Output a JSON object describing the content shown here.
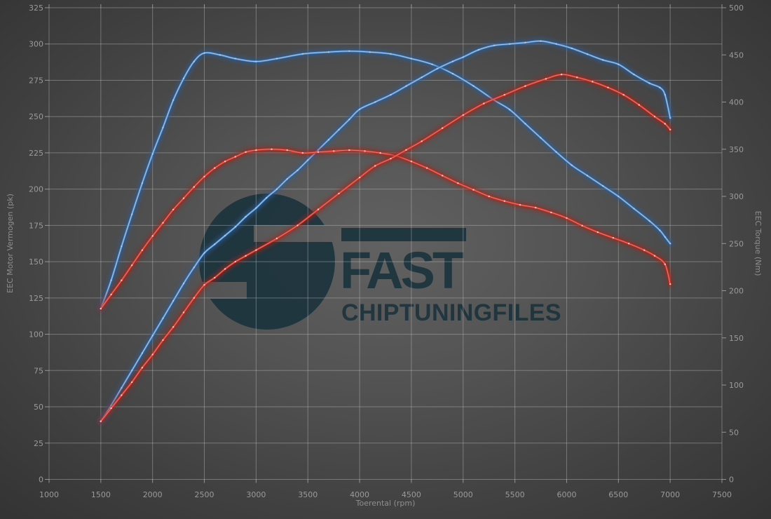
{
  "logo": {
    "line1": "FAST",
    "line2": "CHIPTUNINGFILES",
    "color": "#1b333d"
  },
  "chart_data": {
    "type": "line",
    "title": "",
    "xlabel": "Toerental (rpm)",
    "ylabel_left": "EEC Motor Vermogen (pk)",
    "ylabel_right": "EEC Torque (Nm)",
    "x_range": [
      1000,
      7500
    ],
    "x_tick_step": 500,
    "left_range": [
      0,
      325
    ],
    "left_tick_step": 25,
    "right_range": [
      0,
      500
    ],
    "right_tick_step": 50,
    "grid": true,
    "legend": "none",
    "series": [
      {
        "name": "torque-blue",
        "axis": "right",
        "unit": "Nm",
        "color": {
          "glow": "#2b5f9b",
          "main": "#4e8ed2",
          "core": "#a6c9ec",
          "marker": "#d6e8fb"
        },
        "marker_opacity": 0.45,
        "points": [
          [
            1500,
            181
          ],
          [
            1600,
            211
          ],
          [
            1700,
            247
          ],
          [
            1800,
            281
          ],
          [
            1900,
            314
          ],
          [
            2000,
            345
          ],
          [
            2100,
            373
          ],
          [
            2200,
            402
          ],
          [
            2300,
            425
          ],
          [
            2400,
            443
          ],
          [
            2500,
            452
          ],
          [
            2650,
            450
          ],
          [
            2800,
            446
          ],
          [
            3000,
            443
          ],
          [
            3200,
            446
          ],
          [
            3450,
            451
          ],
          [
            3700,
            453
          ],
          [
            3900,
            454
          ],
          [
            4100,
            453
          ],
          [
            4300,
            451
          ],
          [
            4500,
            446
          ],
          [
            4700,
            440
          ],
          [
            4900,
            430
          ],
          [
            5100,
            417
          ],
          [
            5300,
            402
          ],
          [
            5450,
            392
          ],
          [
            5600,
            377
          ],
          [
            5750,
            362
          ],
          [
            5900,
            347
          ],
          [
            6050,
            333
          ],
          [
            6200,
            322
          ],
          [
            6350,
            311
          ],
          [
            6500,
            300
          ],
          [
            6650,
            287
          ],
          [
            6800,
            274
          ],
          [
            6900,
            264
          ],
          [
            6950,
            257
          ],
          [
            7000,
            250
          ]
        ]
      },
      {
        "name": "power-blue",
        "axis": "left",
        "unit": "pk",
        "color": {
          "glow": "#2b5f9b",
          "main": "#4e8ed2",
          "core": "#a6c9ec",
          "marker": "#d6e8fb"
        },
        "marker_opacity": 0.45,
        "points": [
          [
            1500,
            40
          ],
          [
            1600,
            51
          ],
          [
            1700,
            63
          ],
          [
            1800,
            75
          ],
          [
            1900,
            87
          ],
          [
            2000,
            99
          ],
          [
            2100,
            111
          ],
          [
            2200,
            123
          ],
          [
            2300,
            135
          ],
          [
            2400,
            146
          ],
          [
            2500,
            156
          ],
          [
            2600,
            162
          ],
          [
            2700,
            168
          ],
          [
            2800,
            174
          ],
          [
            2900,
            181
          ],
          [
            3000,
            187
          ],
          [
            3100,
            194
          ],
          [
            3200,
            200
          ],
          [
            3300,
            207
          ],
          [
            3400,
            213
          ],
          [
            3500,
            220
          ],
          [
            3600,
            227
          ],
          [
            3700,
            234
          ],
          [
            3800,
            241
          ],
          [
            3900,
            248
          ],
          [
            4000,
            255
          ],
          [
            4150,
            260
          ],
          [
            4300,
            265
          ],
          [
            4450,
            271
          ],
          [
            4600,
            277
          ],
          [
            4750,
            283
          ],
          [
            4900,
            288
          ],
          [
            5000,
            291
          ],
          [
            5150,
            296
          ],
          [
            5300,
            299
          ],
          [
            5450,
            300
          ],
          [
            5600,
            301
          ],
          [
            5750,
            302
          ],
          [
            5900,
            300
          ],
          [
            6050,
            297
          ],
          [
            6200,
            293
          ],
          [
            6350,
            289
          ],
          [
            6500,
            286
          ],
          [
            6650,
            279
          ],
          [
            6800,
            273
          ],
          [
            6900,
            270
          ],
          [
            6950,
            265
          ],
          [
            7000,
            249
          ]
        ]
      },
      {
        "name": "torque-red",
        "axis": "right",
        "unit": "Nm",
        "color": {
          "glow": "#a42318",
          "main": "#d6352a",
          "core": "#f2796a",
          "marker": "#ffd4c8"
        },
        "marker_opacity": 0.9,
        "points": [
          [
            1500,
            181
          ],
          [
            1600,
            196
          ],
          [
            1700,
            211
          ],
          [
            1800,
            227
          ],
          [
            1900,
            243
          ],
          [
            2000,
            258
          ],
          [
            2100,
            272
          ],
          [
            2200,
            286
          ],
          [
            2300,
            298
          ],
          [
            2400,
            310
          ],
          [
            2500,
            321
          ],
          [
            2600,
            330
          ],
          [
            2700,
            337
          ],
          [
            2800,
            342
          ],
          [
            2900,
            347
          ],
          [
            3000,
            349
          ],
          [
            3150,
            350
          ],
          [
            3300,
            349
          ],
          [
            3450,
            346
          ],
          [
            3600,
            347
          ],
          [
            3750,
            348
          ],
          [
            3900,
            349
          ],
          [
            4050,
            348
          ],
          [
            4200,
            346
          ],
          [
            4350,
            343
          ],
          [
            4500,
            337
          ],
          [
            4650,
            330
          ],
          [
            4800,
            322
          ],
          [
            4950,
            314
          ],
          [
            5100,
            307
          ],
          [
            5250,
            300
          ],
          [
            5400,
            295
          ],
          [
            5550,
            291
          ],
          [
            5700,
            288
          ],
          [
            5850,
            283
          ],
          [
            6000,
            277
          ],
          [
            6150,
            269
          ],
          [
            6300,
            262
          ],
          [
            6450,
            256
          ],
          [
            6600,
            250
          ],
          [
            6750,
            243
          ],
          [
            6850,
            237
          ],
          [
            6950,
            228
          ],
          [
            7000,
            207
          ]
        ]
      },
      {
        "name": "power-red",
        "axis": "left",
        "unit": "pk",
        "color": {
          "glow": "#a42318",
          "main": "#d6352a",
          "core": "#f2796a",
          "marker": "#ffd4c8"
        },
        "marker_opacity": 0.9,
        "points": [
          [
            1500,
            40
          ],
          [
            1600,
            49
          ],
          [
            1700,
            58
          ],
          [
            1800,
            67
          ],
          [
            1900,
            77
          ],
          [
            2000,
            86
          ],
          [
            2100,
            96
          ],
          [
            2200,
            105
          ],
          [
            2300,
            115
          ],
          [
            2400,
            125
          ],
          [
            2500,
            134
          ],
          [
            2600,
            139
          ],
          [
            2700,
            145
          ],
          [
            2800,
            150
          ],
          [
            2900,
            154
          ],
          [
            3000,
            158
          ],
          [
            3200,
            166
          ],
          [
            3400,
            175
          ],
          [
            3600,
            186
          ],
          [
            3800,
            197
          ],
          [
            4000,
            208
          ],
          [
            4150,
            216
          ],
          [
            4300,
            221
          ],
          [
            4450,
            227
          ],
          [
            4600,
            233
          ],
          [
            4800,
            242
          ],
          [
            5000,
            251
          ],
          [
            5200,
            259
          ],
          [
            5400,
            265
          ],
          [
            5600,
            271
          ],
          [
            5800,
            276
          ],
          [
            5950,
            279
          ],
          [
            6100,
            277
          ],
          [
            6250,
            274
          ],
          [
            6400,
            270
          ],
          [
            6550,
            265
          ],
          [
            6700,
            258
          ],
          [
            6850,
            250
          ],
          [
            6950,
            245
          ],
          [
            7000,
            241
          ]
        ]
      }
    ]
  }
}
